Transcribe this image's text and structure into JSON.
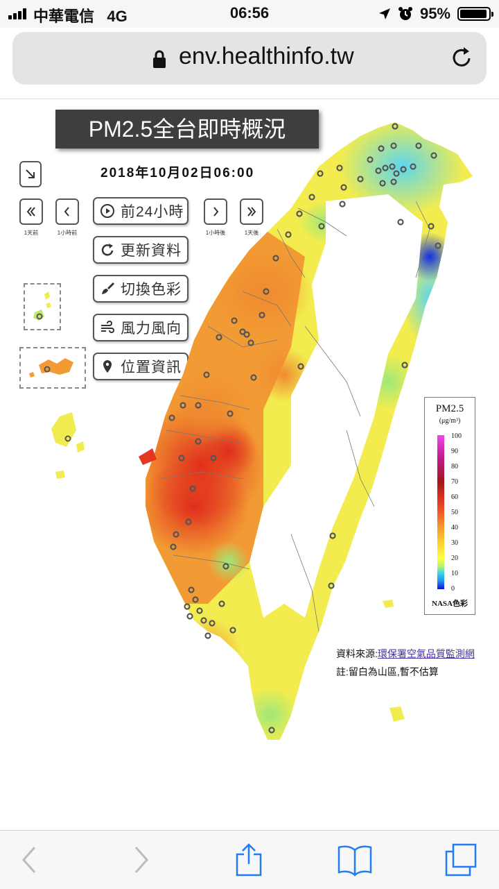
{
  "status_bar": {
    "carrier": "中華電信",
    "network": "4G",
    "time": "06:56",
    "battery": "95%"
  },
  "browser": {
    "url": "env.healthinfo.tw"
  },
  "map": {
    "title": "PM2.5全台即時概況",
    "datetime": "2018年10月02日06:00",
    "nav": {
      "day_back_label": "1天前",
      "hour_back_label": "1小時前",
      "hour_fwd_label": "1小時後",
      "day_fwd_label": "1天後"
    },
    "buttons": {
      "prev24": "前24小時",
      "refresh": "更新資料",
      "color": "切換色彩",
      "wind": "風力風向",
      "location": "位置資訊"
    },
    "legend": {
      "title": "PM2.5",
      "unit": "(μg/m³)",
      "ticks": [
        "100",
        "90",
        "80",
        "70",
        "60",
        "50",
        "40",
        "30",
        "20",
        "10",
        "0"
      ],
      "scheme": "NASA色彩"
    },
    "source_prefix": "資料來源:",
    "source_link": "環保署空氣品質監測網",
    "note": "註:留白為山區,暫不估算"
  },
  "colors": {
    "high": "#e5361e",
    "mid": "#f29a33",
    "low": "#f4ee4c",
    "clean": "#6fe0e8",
    "title_bg": "#3e3e3e"
  }
}
